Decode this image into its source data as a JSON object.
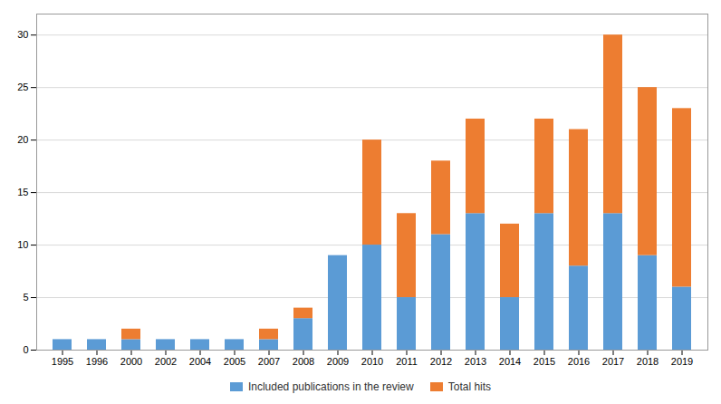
{
  "chart_data": {
    "type": "bar",
    "categories": [
      "1995",
      "1996",
      "2000",
      "2002",
      "2004",
      "2005",
      "2007",
      "2008",
      "2009",
      "2010",
      "2011",
      "2012",
      "2013",
      "2014",
      "2015",
      "2016",
      "2017",
      "2018",
      "2019"
    ],
    "series": [
      {
        "name": "Included publications in the review",
        "color": "#5B9BD5",
        "values": [
          1,
          1,
          1,
          1,
          1,
          1,
          1,
          3,
          9,
          10,
          5,
          11,
          13,
          5,
          13,
          8,
          13,
          9,
          6
        ]
      },
      {
        "name": "Total hits",
        "color": "#ED7D31",
        "values": [
          0,
          0,
          1,
          0,
          0,
          0,
          1,
          1,
          0,
          10,
          8,
          7,
          9,
          7,
          9,
          13,
          17,
          16,
          17
        ]
      }
    ],
    "ylim": [
      0,
      32
    ],
    "yticks": [
      0,
      5,
      10,
      15,
      20,
      25,
      30
    ],
    "stacked": true,
    "grid": true,
    "legend": "bottom"
  }
}
